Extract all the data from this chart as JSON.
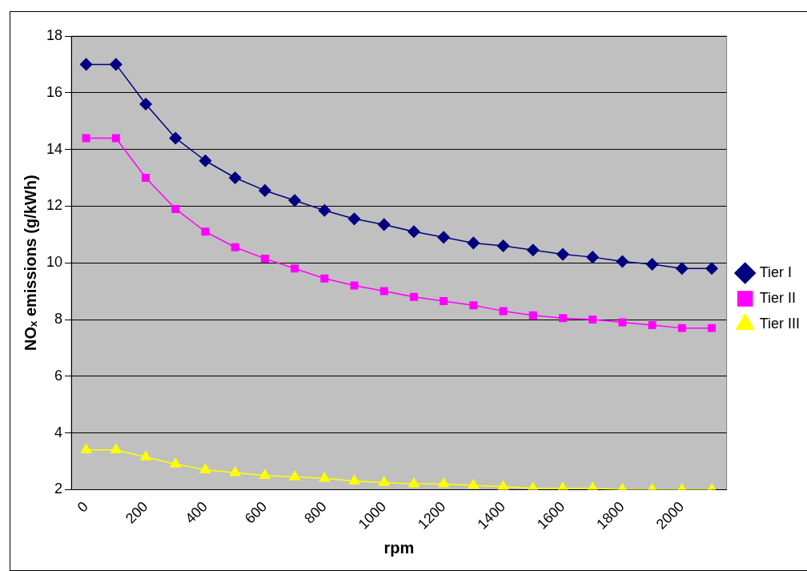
{
  "chart_data": {
    "type": "line",
    "xlabel": "rpm",
    "ylabel": "NOₓ emissions (g/kWh)",
    "categories": [
      "0",
      null,
      "200",
      null,
      "400",
      null,
      "600",
      null,
      "800",
      null,
      "1000",
      null,
      "1200",
      null,
      "1400",
      null,
      "1600",
      null,
      "1800",
      null,
      "2000",
      null
    ],
    "series": [
      {
        "name": "Tier I",
        "color": "#000080",
        "marker": "diamond",
        "values": [
          17,
          17,
          15.6,
          14.4,
          13.6,
          13.0,
          12.55,
          12.2,
          11.85,
          11.55,
          11.35,
          11.1,
          10.9,
          10.7,
          10.6,
          10.45,
          10.3,
          10.2,
          10.05,
          9.95,
          9.8,
          9.8
        ]
      },
      {
        "name": "Tier II",
        "color": "#ff00ff",
        "marker": "square",
        "values": [
          14.4,
          14.4,
          13.0,
          11.9,
          11.1,
          10.55,
          10.15,
          9.8,
          9.45,
          9.2,
          9.0,
          8.8,
          8.65,
          8.5,
          8.3,
          8.15,
          8.05,
          8.0,
          7.9,
          7.8,
          7.7,
          7.7
        ]
      },
      {
        "name": "Tier III",
        "color": "#ffff00",
        "marker": "triangle",
        "values": [
          3.4,
          3.4,
          3.15,
          2.9,
          2.7,
          2.6,
          2.5,
          2.45,
          2.4,
          2.3,
          2.25,
          2.2,
          2.2,
          2.15,
          2.1,
          2.05,
          2.05,
          2.05,
          2.0,
          2.0,
          2.0,
          2.0
        ]
      }
    ],
    "ylim": [
      2,
      18
    ],
    "yticks": [
      2,
      4,
      6,
      8,
      10,
      12,
      14,
      16,
      18
    ],
    "grid": "y",
    "legend": "right",
    "line_style": "solid"
  }
}
